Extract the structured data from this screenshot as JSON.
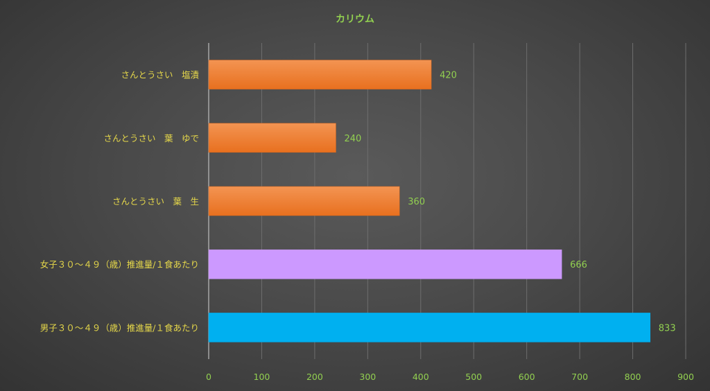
{
  "chart_data": {
    "type": "bar",
    "orientation": "horizontal",
    "title": "カリウム",
    "categories": [
      "さんとうさい　塩漬",
      "さんとうさい　葉　ゆで",
      "さんとうさい　葉　生",
      "女子３０～４９（歳）推進量/１食あたり",
      "男子３０～４９（歳）推進量/１食あたり"
    ],
    "values": [
      420,
      240,
      360,
      666,
      833
    ],
    "colors": [
      "#ed7d31",
      "#ed7d31",
      "#ed7d31",
      "#cc99ff",
      "#00b0f0"
    ],
    "xlim": [
      0,
      900
    ],
    "xticks": [
      "0",
      "100",
      "200",
      "300",
      "400",
      "500",
      "600",
      "700",
      "800",
      "900"
    ],
    "grid": true,
    "data_labels": true
  }
}
